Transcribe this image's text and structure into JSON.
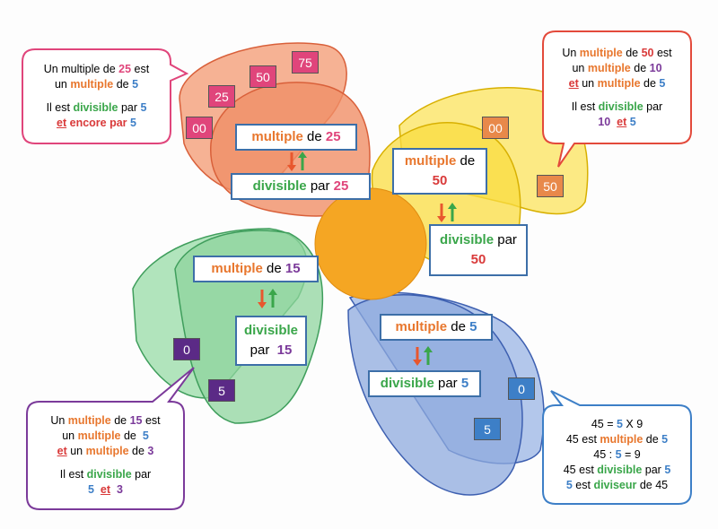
{
  "petals": [
    {
      "tile_color": "#e0457b",
      "tiles": [
        "00",
        "25",
        "50",
        "75"
      ],
      "multiple": [
        [
          {
            "text": "multiple",
            "color": "#e8772e"
          },
          {
            "text": " de "
          },
          {
            "text": "25",
            "color": "#e0457b"
          }
        ]
      ],
      "divisible": [
        [
          {
            "text": "divisible",
            "color": "#3aa64a"
          },
          {
            "text": " par "
          },
          {
            "text": "25",
            "color": "#e0457b"
          }
        ]
      ]
    },
    {
      "tile_color": "#e8894a",
      "tiles": [
        "00",
        "50"
      ],
      "multiple": [
        [
          {
            "text": "multiple",
            "color": "#e8772e"
          },
          {
            "text": " de"
          }
        ],
        [
          {
            "text": "50",
            "color": "#d93a3a"
          }
        ]
      ],
      "divisible": [
        [
          {
            "text": "divisible",
            "color": "#3aa64a"
          },
          {
            "text": " par"
          }
        ],
        [
          {
            "text": "50",
            "color": "#d93a3a"
          }
        ]
      ]
    },
    {
      "tile_color": "#5b2a86",
      "tiles": [
        "0",
        "5"
      ],
      "multiple": [
        [
          {
            "text": "multiple",
            "color": "#e8772e"
          },
          {
            "text": " de "
          },
          {
            "text": "15",
            "color": "#7b3a9a"
          }
        ]
      ],
      "divisible": [
        [
          {
            "text": "divisible",
            "color": "#3aa64a"
          }
        ],
        [
          {
            "text": "par  "
          },
          {
            "text": "15",
            "color": "#7b3a9a"
          }
        ]
      ]
    },
    {
      "tile_color": "#3d7fc7",
      "tiles": [
        "0",
        "5"
      ],
      "multiple": [
        [
          {
            "text": "multiple",
            "color": "#e8772e"
          },
          {
            "text": " de "
          },
          {
            "text": "5",
            "color": "#3d7fc7"
          }
        ]
      ],
      "divisible": [
        [
          {
            "text": "divisible",
            "color": "#3aa64a"
          },
          {
            "text": " par "
          },
          {
            "text": "5",
            "color": "#3d7fc7"
          }
        ]
      ]
    }
  ],
  "bubbles": [
    {
      "paragraphs": [
        [
          [
            {
              "text": "Un multiple de "
            },
            {
              "text": "25",
              "color": "#e0457b"
            },
            {
              "text": " est"
            }
          ],
          [
            {
              "text": "un "
            },
            {
              "text": "multiple",
              "color": "#e8772e"
            },
            {
              "text": " de "
            },
            {
              "text": "5",
              "color": "#3d7fc7"
            }
          ]
        ],
        [
          [
            {
              "text": "Il est "
            },
            {
              "text": "divisible",
              "color": "#3aa64a"
            },
            {
              "text": " par "
            },
            {
              "text": "5",
              "color": "#3d7fc7"
            }
          ],
          [
            {
              "text": "et",
              "color": "#d93a3a",
              "underline": true
            },
            {
              "text": " encore par ",
              "color": "#d93a3a"
            },
            {
              "text": "5",
              "color": "#3d7fc7"
            }
          ]
        ]
      ]
    },
    {
      "paragraphs": [
        [
          [
            {
              "text": "Un "
            },
            {
              "text": "multiple",
              "color": "#e8772e"
            },
            {
              "text": " de "
            },
            {
              "text": "50",
              "color": "#d93a3a"
            },
            {
              "text": " est"
            }
          ],
          [
            {
              "text": "un "
            },
            {
              "text": "multiple",
              "color": "#e8772e"
            },
            {
              "text": " de "
            },
            {
              "text": "10",
              "color": "#7b3a9a"
            }
          ],
          [
            {
              "text": "et",
              "color": "#d93a3a",
              "underline": true
            },
            {
              "text": " un "
            },
            {
              "text": "multiple",
              "color": "#e8772e"
            },
            {
              "text": " de "
            },
            {
              "text": "5",
              "color": "#3d7fc7"
            }
          ]
        ],
        [
          [
            {
              "text": "Il est "
            },
            {
              "text": "divisible",
              "color": "#3aa64a"
            },
            {
              "text": " par"
            }
          ],
          [
            {
              "text": "10",
              "color": "#7b3a9a"
            },
            {
              "text": "  "
            },
            {
              "text": "et",
              "color": "#d93a3a",
              "underline": true
            },
            {
              "text": " "
            },
            {
              "text": "5",
              "color": "#3d7fc7"
            }
          ]
        ]
      ]
    },
    {
      "paragraphs": [
        [
          [
            {
              "text": "Un "
            },
            {
              "text": "multiple",
              "color": "#e8772e"
            },
            {
              "text": " de "
            },
            {
              "text": "15",
              "color": "#7b3a9a"
            },
            {
              "text": " est"
            }
          ],
          [
            {
              "text": "un "
            },
            {
              "text": "multiple",
              "color": "#e8772e"
            },
            {
              "text": " de  "
            },
            {
              "text": "5",
              "color": "#3d7fc7"
            }
          ],
          [
            {
              "text": "et",
              "color": "#d93a3a",
              "underline": true
            },
            {
              "text": " un "
            },
            {
              "text": "multiple",
              "color": "#e8772e"
            },
            {
              "text": " de "
            },
            {
              "text": "3",
              "color": "#7b3a9a"
            }
          ]
        ],
        [
          [
            {
              "text": "Il est "
            },
            {
              "text": "divisible",
              "color": "#3aa64a"
            },
            {
              "text": " par"
            }
          ],
          [
            {
              "text": "5",
              "color": "#3d7fc7"
            },
            {
              "text": "  "
            },
            {
              "text": "et",
              "color": "#d93a3a",
              "underline": true
            },
            {
              "text": "  "
            },
            {
              "text": "3",
              "color": "#7b3a9a"
            }
          ]
        ]
      ]
    },
    {
      "paragraphs": [
        [
          [
            {
              "text": "45 = "
            },
            {
              "text": "5",
              "color": "#3d7fc7"
            },
            {
              "text": " X 9"
            }
          ],
          [
            {
              "text": "45 est "
            },
            {
              "text": "multiple",
              "color": "#e8772e"
            },
            {
              "text": " de "
            },
            {
              "text": "5",
              "color": "#3d7fc7"
            }
          ],
          [
            {
              "text": "45 : "
            },
            {
              "text": "5",
              "color": "#3d7fc7"
            },
            {
              "text": " = 9"
            }
          ],
          [
            {
              "text": "45 est "
            },
            {
              "text": "divisible",
              "color": "#3aa64a"
            },
            {
              "text": " par "
            },
            {
              "text": "5",
              "color": "#3d7fc7"
            }
          ],
          [
            {
              "text": "5",
              "color": "#3d7fc7"
            },
            {
              "text": " est "
            },
            {
              "text": "diviseur",
              "color": "#3aa64a"
            },
            {
              "text": " de 45"
            }
          ]
        ]
      ]
    }
  ]
}
